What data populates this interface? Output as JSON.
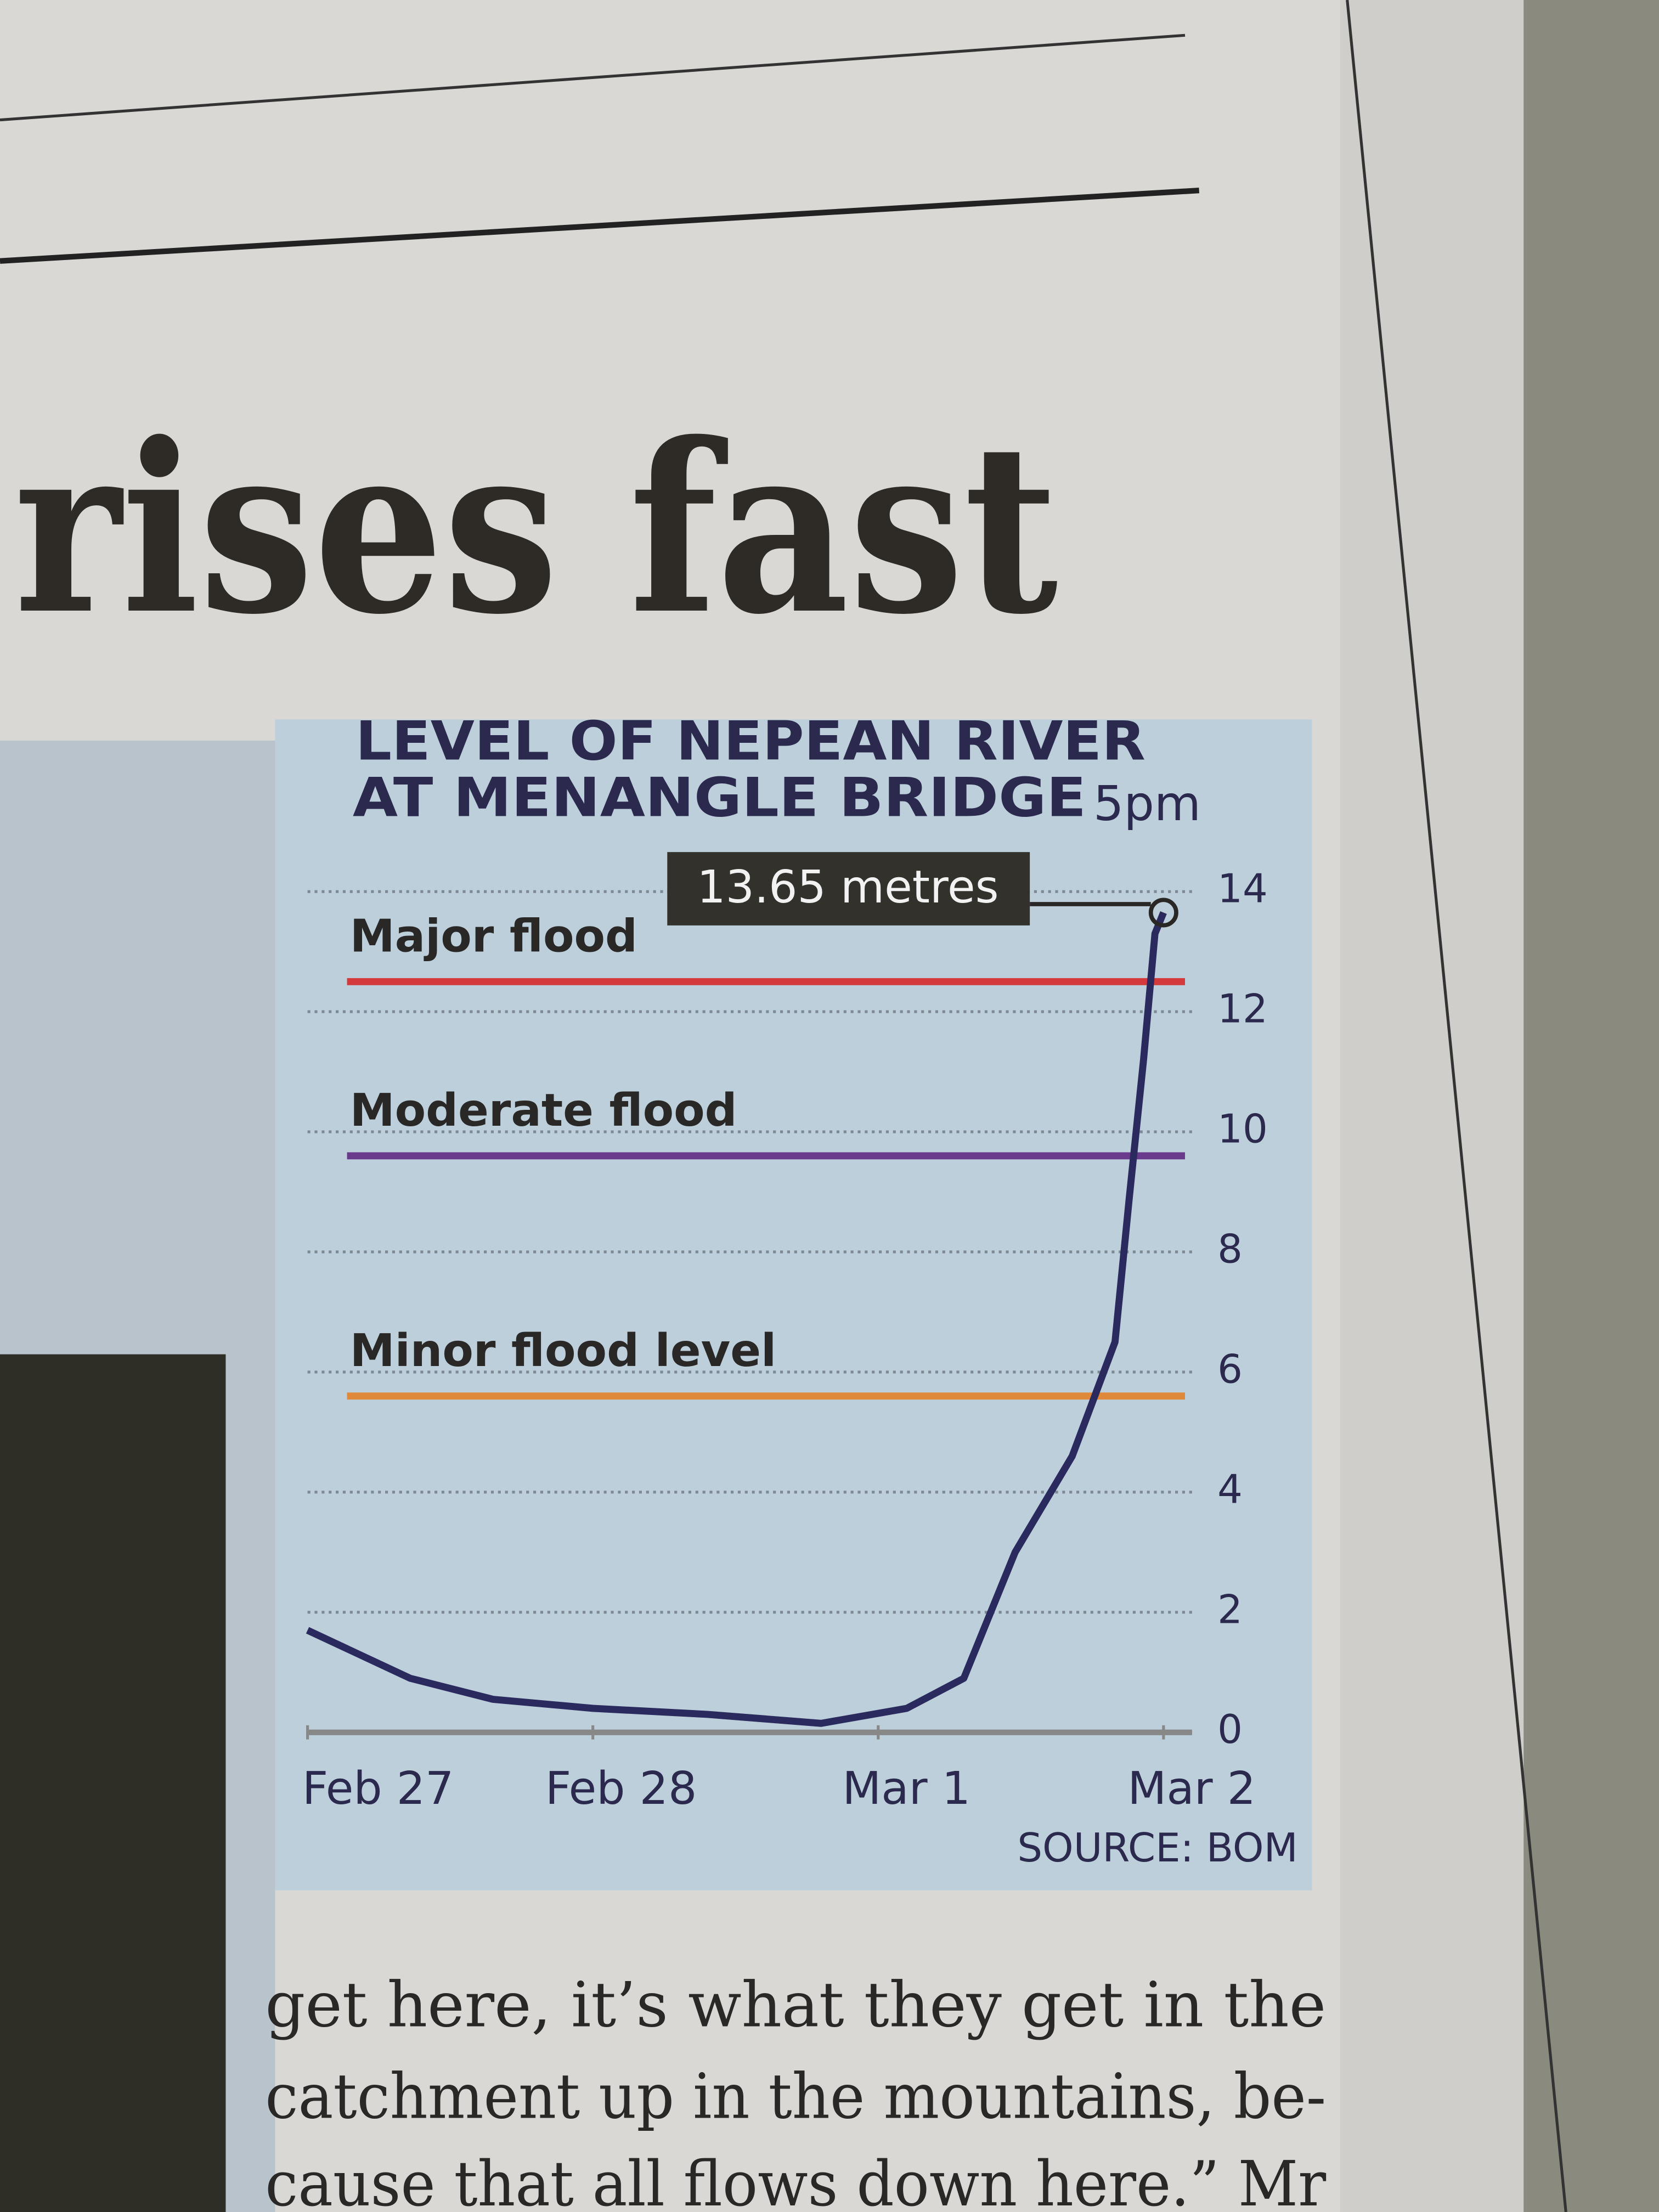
{
  "headline": "rises fast",
  "body_text": [
    "get here, it’s what they get in the",
    "catchment up in the mountains, be-",
    "cause that all flows down here.” Mr"
  ],
  "chart_data": {
    "type": "line",
    "title": [
      "LEVEL OF NEPEAN RIVER",
      "AT MENANGLE BRIDGE"
    ],
    "time": "5pm",
    "source": "SOURCE: BOM",
    "annotation": "13.65 metres",
    "x": [
      0,
      0.36,
      0.65,
      1.0,
      1.4,
      1.8,
      2.1,
      2.3,
      2.48,
      2.68,
      2.83,
      2.88,
      2.93,
      2.97,
      3.0
    ],
    "values": [
      1.7,
      0.9,
      0.55,
      0.4,
      0.3,
      0.15,
      0.4,
      0.9,
      3.0,
      4.6,
      6.5,
      8.9,
      11.2,
      13.3,
      13.65
    ],
    "color": "#2b2a5e",
    "xlim": [
      0,
      3.1
    ],
    "xticks": [
      {
        "value": 0,
        "label": "Feb 27"
      },
      {
        "value": 1,
        "label": "Feb 28"
      },
      {
        "value": 2,
        "label": "Mar 1"
      },
      {
        "value": 3,
        "label": "Mar 2"
      }
    ],
    "ylim": [
      0,
      14
    ],
    "yticks": [
      0,
      2,
      4,
      6,
      8,
      10,
      12,
      14
    ],
    "grid": true,
    "thresholds": [
      {
        "label": "Major flood",
        "value": 12.5,
        "color": "#d23a3c"
      },
      {
        "label": "Moderate flood",
        "value": 9.6,
        "color": "#6a3a8c"
      },
      {
        "label": "Minor flood level",
        "value": 5.6,
        "color": "#e0893a"
      }
    ]
  }
}
